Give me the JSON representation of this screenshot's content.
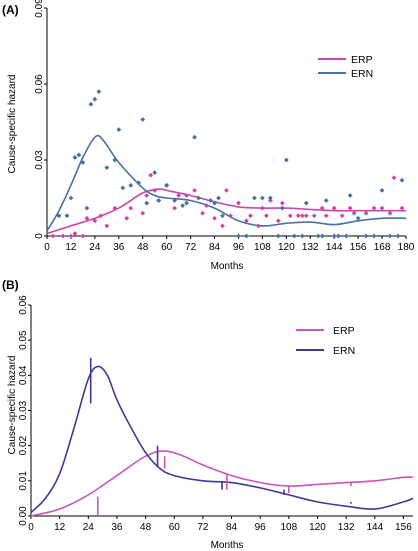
{
  "chart_data": [
    {
      "panel": "(A)",
      "type": "scatter",
      "xlabel": "Months",
      "ylabel": "Cause-specific hazard",
      "xlim": [
        0,
        180
      ],
      "ylim": [
        0,
        0.09
      ],
      "xticks": [
        0,
        12,
        24,
        36,
        48,
        60,
        72,
        84,
        96,
        108,
        120,
        132,
        144,
        156,
        168,
        180
      ],
      "xtick_labels": [
        "0",
        "12",
        "24",
        "36",
        "48",
        "60",
        "72",
        "84",
        "96",
        "108",
        "120",
        "132",
        "144",
        "156",
        "168",
        "180"
      ],
      "yticks": [
        0,
        0.03,
        0.06,
        0.09
      ],
      "ytick_labels": [
        "0",
        "0.03",
        "0.06",
        "0.09"
      ],
      "legend_position": "top-right",
      "series": [
        {
          "name": "ERP",
          "color": "#cc44aa",
          "points": [
            [
              3,
              0
            ],
            [
              8,
              0
            ],
            [
              12,
              0
            ],
            [
              14,
              0.001
            ],
            [
              18,
              0
            ],
            [
              20,
              0.007
            ],
            [
              24,
              0.006
            ],
            [
              27,
              0.008
            ],
            [
              30,
              0.004
            ],
            [
              34,
              0.011
            ],
            [
              40,
              0.007
            ],
            [
              42,
              0.011
            ],
            [
              48,
              0.009
            ],
            [
              50,
              0.016
            ],
            [
              52,
              0.024
            ],
            [
              54,
              0.018
            ],
            [
              56,
              0.014
            ],
            [
              60,
              0.02
            ],
            [
              64,
              0.011
            ],
            [
              66,
              0.016
            ],
            [
              70,
              0.016
            ],
            [
              74,
              0.018
            ],
            [
              78,
              0.009
            ],
            [
              80,
              0.012
            ],
            [
              84,
              0.007
            ],
            [
              88,
              0.004
            ],
            [
              90,
              0.018
            ],
            [
              92,
              0.008
            ],
            [
              96,
              0.013
            ],
            [
              100,
              0.006
            ],
            [
              102,
              0.008
            ],
            [
              106,
              0.004
            ],
            [
              108,
              0.011
            ],
            [
              110,
              0.008
            ],
            [
              112,
              0.014
            ],
            [
              116,
              0.006
            ],
            [
              118,
              0.013
            ],
            [
              122,
              0.008
            ],
            [
              126,
              0.008
            ],
            [
              128,
              0.008
            ],
            [
              130,
              0.008
            ],
            [
              134,
              0.008
            ],
            [
              138,
              0.011
            ],
            [
              140,
              0.008
            ],
            [
              144,
              0.011
            ],
            [
              148,
              0.008
            ],
            [
              152,
              0.011
            ],
            [
              154,
              0.009
            ],
            [
              160,
              0.009
            ],
            [
              164,
              0.011
            ],
            [
              168,
              0.011
            ],
            [
              172,
              0.009
            ],
            [
              174,
              0.023
            ],
            [
              178,
              0.011
            ]
          ],
          "curve": [
            [
              0,
              0.001
            ],
            [
              12,
              0.004
            ],
            [
              24,
              0.007
            ],
            [
              36,
              0.011
            ],
            [
              48,
              0.017
            ],
            [
              56,
              0.0185
            ],
            [
              60,
              0.018
            ],
            [
              72,
              0.016
            ],
            [
              84,
              0.0135
            ],
            [
              96,
              0.0115
            ],
            [
              108,
              0.011
            ],
            [
              120,
              0.011
            ],
            [
              132,
              0.0105
            ],
            [
              144,
              0.01
            ],
            [
              156,
              0.01
            ],
            [
              168,
              0.01
            ],
            [
              180,
              0.01
            ]
          ]
        },
        {
          "name": "ERN",
          "color": "#4a6fa5",
          "points": [
            [
              6,
              0.008
            ],
            [
              10,
              0.008
            ],
            [
              12,
              0.015
            ],
            [
              14,
              0.031
            ],
            [
              16,
              0.032
            ],
            [
              18,
              0.029
            ],
            [
              20,
              0.011
            ],
            [
              22,
              0.052
            ],
            [
              24,
              0.054
            ],
            [
              26,
              0.057
            ],
            [
              30,
              0.027
            ],
            [
              34,
              0.03
            ],
            [
              36,
              0.042
            ],
            [
              38,
              0.019
            ],
            [
              42,
              0.02
            ],
            [
              46,
              0.021
            ],
            [
              48,
              0.046
            ],
            [
              50,
              0.013
            ],
            [
              54,
              0.025
            ],
            [
              56,
              0.014
            ],
            [
              60,
              0.02
            ],
            [
              64,
              0.014
            ],
            [
              68,
              0.012
            ],
            [
              70,
              0.013
            ],
            [
              74,
              0.039
            ],
            [
              76,
              0.015
            ],
            [
              82,
              0.014
            ],
            [
              84,
              0.013
            ],
            [
              86,
              0.015
            ],
            [
              88,
              0.008
            ],
            [
              96,
              0
            ],
            [
              100,
              0
            ],
            [
              104,
              0.015
            ],
            [
              108,
              0.015
            ],
            [
              112,
              0.015
            ],
            [
              116,
              0
            ],
            [
              118,
              0.011
            ],
            [
              120,
              0.03
            ],
            [
              124,
              0
            ],
            [
              128,
              0
            ],
            [
              130,
              0.013
            ],
            [
              136,
              0
            ],
            [
              138,
              0
            ],
            [
              140,
              0.014
            ],
            [
              144,
              0
            ],
            [
              146,
              0
            ],
            [
              150,
              0
            ],
            [
              152,
              0.016
            ],
            [
              156,
              0.007
            ],
            [
              160,
              0
            ],
            [
              164,
              0
            ],
            [
              168,
              0.018
            ],
            [
              172,
              0
            ],
            [
              176,
              0
            ],
            [
              178,
              0.022
            ]
          ],
          "curve": [
            [
              0,
              0.002
            ],
            [
              6,
              0.01
            ],
            [
              12,
              0.02
            ],
            [
              18,
              0.031
            ],
            [
              24,
              0.039
            ],
            [
              28,
              0.038
            ],
            [
              36,
              0.029
            ],
            [
              48,
              0.019
            ],
            [
              54,
              0.016
            ],
            [
              60,
              0.015
            ],
            [
              72,
              0.014
            ],
            [
              84,
              0.011
            ],
            [
              96,
              0.006
            ],
            [
              108,
              0.004
            ],
            [
              120,
              0.005
            ],
            [
              132,
              0.0055
            ],
            [
              144,
              0.0045
            ],
            [
              156,
              0.006
            ],
            [
              168,
              0.007
            ],
            [
              180,
              0.007
            ]
          ]
        }
      ]
    },
    {
      "panel": "(B)",
      "type": "line",
      "xlabel": "Months",
      "ylabel": "Cause-specific hazard",
      "xlim": [
        0,
        160
      ],
      "ylim": [
        0,
        0.06
      ],
      "xticks": [
        0,
        12,
        24,
        36,
        48,
        60,
        72,
        84,
        96,
        108,
        120,
        132,
        144,
        156
      ],
      "xtick_labels": [
        "0",
        "12",
        "24",
        "36",
        "48",
        "60",
        "72",
        "84",
        "96",
        "108",
        "120",
        "132",
        "144",
        "156"
      ],
      "yticks": [
        0,
        0.01,
        0.02,
        0.03,
        0.04,
        0.05,
        0.06
      ],
      "ytick_labels": [
        "0.00",
        "0.01",
        "0.02",
        "0.03",
        "0.04",
        "0.05",
        "0.06"
      ],
      "legend_position": "top-right",
      "series": [
        {
          "name": "ERP",
          "color": "#cc55bb",
          "curve": [
            [
              0,
              0
            ],
            [
              12,
              0.002
            ],
            [
              24,
              0.006
            ],
            [
              36,
              0.0115
            ],
            [
              48,
              0.017
            ],
            [
              56,
              0.0185
            ],
            [
              64,
              0.017
            ],
            [
              72,
              0.0145
            ],
            [
              84,
              0.0115
            ],
            [
              96,
              0.0095
            ],
            [
              108,
              0.0085
            ],
            [
              120,
              0.009
            ],
            [
              132,
              0.0095
            ],
            [
              144,
              0.01
            ],
            [
              156,
              0.011
            ],
            [
              160,
              0.011
            ]
          ],
          "error_bars": [
            [
              28,
              0.0055,
              0.0
            ],
            [
              56,
              0.017,
              0.0135
            ],
            [
              82,
              0.012,
              0.0075
            ],
            [
              108,
              0.0085,
              0.0065
            ],
            [
              134,
              0.0095,
              0.0085
            ]
          ]
        },
        {
          "name": "ERN",
          "color": "#3b3b98",
          "curve": [
            [
              0,
              0.001
            ],
            [
              6,
              0.005
            ],
            [
              12,
              0.012
            ],
            [
              18,
              0.025
            ],
            [
              24,
              0.039
            ],
            [
              28,
              0.0425
            ],
            [
              32,
              0.04
            ],
            [
              36,
              0.033
            ],
            [
              42,
              0.025
            ],
            [
              48,
              0.018
            ],
            [
              54,
              0.0135
            ],
            [
              60,
              0.0115
            ],
            [
              72,
              0.01
            ],
            [
              84,
              0.0095
            ],
            [
              96,
              0.008
            ],
            [
              108,
              0.006
            ],
            [
              120,
              0.004
            ],
            [
              132,
              0.0028
            ],
            [
              144,
              0.002
            ],
            [
              156,
              0.004
            ],
            [
              160,
              0.005
            ]
          ],
          "error_bars": [
            [
              25,
              0.045,
              0.032
            ],
            [
              53,
              0.02,
              0.014
            ],
            [
              80,
              0.01,
              0.0075
            ],
            [
              106,
              0.0075,
              0.006
            ],
            [
              134,
              0.004,
              0.0035
            ]
          ]
        }
      ]
    }
  ]
}
